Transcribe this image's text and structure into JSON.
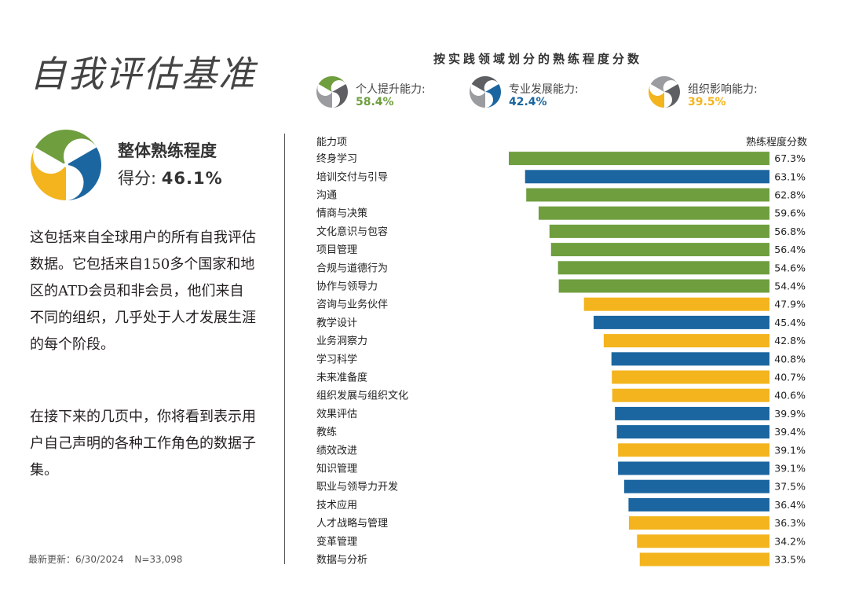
{
  "page": {
    "title": "自我评估基准",
    "overall_label": "整体熟练程度",
    "overall_score_prefix": "得分:",
    "overall_score_value": "46.1%",
    "description_1": "这包括来自全球用户的所有自我评估数据。它包括来自150多个国家和地区的ATD会员和非会员，他们来自不同的组织，几乎处于人才发展生涯的每个阶段。",
    "description_2": "在接下来的几页中，你将看到表示用户自己声明的各种工作角色的数据子集。",
    "footer_updated": "最新更新：6/30/2024",
    "footer_n": "N=33,098"
  },
  "colors": {
    "green": "#6f9e3f",
    "blue": "#1b66a0",
    "yellow": "#f3b41e",
    "gray": "#5d5f62",
    "lightgray": "#9a9c9f"
  },
  "chart_data": {
    "type": "bar",
    "orientation": "horizontal",
    "title": "按实践领域划分的熟练程度分数",
    "column_left_label": "能力项",
    "column_right_label": "熟练程度分数",
    "legend": [
      {
        "name": "个人提升能力:",
        "value": "58.4%",
        "color": "#6f9e3f"
      },
      {
        "name": "专业发展能力:",
        "value": "42.4%",
        "color": "#1b66a0"
      },
      {
        "name": "组织影响能力:",
        "value": "39.5%",
        "color": "#f3b41e"
      }
    ],
    "categories": [
      "终身学习",
      "培训交付与引导",
      "沟通",
      "情商与决策",
      "文化意识与包容",
      "项目管理",
      "合规与道德行为",
      "协作与领导力",
      "咨询与业务伙伴",
      "教学设计",
      "业务洞察力",
      "学习科学",
      "未来准备度",
      "组织发展与组织文化",
      "效果评估",
      "教练",
      "绩效改进",
      "知识管理",
      "职业与领导力开发",
      "技术应用",
      "人才战略与管理",
      "变革管理",
      "数据与分析"
    ],
    "values": [
      67.3,
      63.1,
      62.8,
      59.6,
      56.8,
      56.4,
      54.6,
      54.4,
      47.9,
      45.4,
      42.8,
      40.8,
      40.7,
      40.6,
      39.9,
      39.4,
      39.1,
      39.1,
      37.5,
      36.4,
      36.3,
      34.2,
      33.5
    ],
    "value_labels": [
      "67.3%",
      "63.1%",
      "62.8%",
      "59.6%",
      "56.8%",
      "56.4%",
      "54.6%",
      "54.4%",
      "47.9%",
      "45.4%",
      "42.8%",
      "40.8%",
      "40.7%",
      "40.6%",
      "39.9%",
      "39.4%",
      "39.1%",
      "39.1%",
      "37.5%",
      "36.4%",
      "36.3%",
      "34.2%",
      "33.5%"
    ],
    "groups": [
      "个人提升能力",
      "专业发展能力",
      "个人提升能力",
      "个人提升能力",
      "个人提升能力",
      "个人提升能力",
      "个人提升能力",
      "个人提升能力",
      "组织影响能力",
      "专业发展能力",
      "组织影响能力",
      "专业发展能力",
      "组织影响能力",
      "组织影响能力",
      "专业发展能力",
      "专业发展能力",
      "组织影响能力",
      "专业发展能力",
      "专业发展能力",
      "专业发展能力",
      "组织影响能力",
      "组织影响能力",
      "组织影响能力"
    ],
    "group_colors": {
      "个人提升能力": "#6f9e3f",
      "专业发展能力": "#1b66a0",
      "组织影响能力": "#f3b41e"
    },
    "xlim": [
      0,
      100
    ]
  }
}
